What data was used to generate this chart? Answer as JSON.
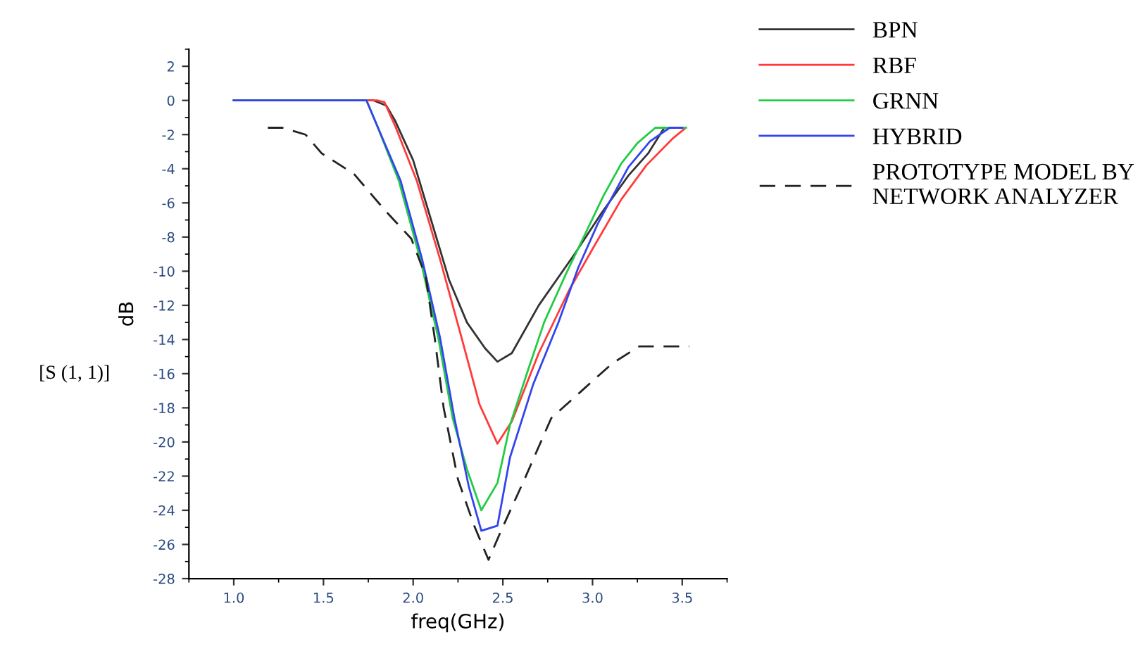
{
  "chart_data": {
    "type": "line",
    "xlabel": "freq(GHz)",
    "ylabel": "dB",
    "annotations": [
      "[S (1, 1)]"
    ],
    "xlim": [
      0.75,
      3.75
    ],
    "ylim": [
      -28,
      3
    ],
    "xticks": [
      {
        "value": 1.0,
        "label": "1.0"
      },
      {
        "value": 1.5,
        "label": "1.5"
      },
      {
        "value": 2.0,
        "label": "2.0"
      },
      {
        "value": 2.5,
        "label": "2.5"
      },
      {
        "value": 3.0,
        "label": "3.0"
      },
      {
        "value": 3.5,
        "label": "3.5"
      }
    ],
    "yticks": [
      2,
      0,
      -2,
      -4,
      -6,
      -8,
      -10,
      -12,
      -14,
      -16,
      -18,
      -20,
      -22,
      -24,
      -26,
      -28
    ],
    "grid": false,
    "legend": "right",
    "marker": "none",
    "series": [
      {
        "name": "BPN",
        "color": "#333333",
        "line_style": "solid",
        "x": [
          1.0,
          1.78,
          1.85,
          1.9,
          2.0,
          2.1,
          2.2,
          2.3,
          2.4,
          2.47,
          2.55,
          2.7,
          2.9,
          3.05,
          3.2,
          3.31,
          3.4
        ],
        "values": [
          0,
          0,
          -0.3,
          -1.2,
          -3.5,
          -7,
          -10.5,
          -13,
          -14.5,
          -15.3,
          -14.8,
          -12,
          -9,
          -6.6,
          -4.4,
          -3.1,
          -1.6
        ]
      },
      {
        "name": "RBF",
        "color": "#ff3b3b",
        "line_style": "solid",
        "x": [
          1.0,
          1.8,
          1.84,
          1.9,
          2.02,
          2.15,
          2.27,
          2.37,
          2.47,
          2.55,
          2.7,
          2.87,
          3.0,
          3.16,
          3.3,
          3.45,
          3.52
        ],
        "values": [
          0,
          0,
          -0.1,
          -1.5,
          -4.7,
          -9.3,
          -13.9,
          -17.8,
          -20.1,
          -18.8,
          -14.8,
          -11.1,
          -8.7,
          -5.8,
          -3.8,
          -2.2,
          -1.6
        ]
      },
      {
        "name": "GRNN",
        "color": "#22cc44",
        "line_style": "solid",
        "x": [
          1.0,
          1.74,
          1.8,
          1.92,
          2.04,
          2.14,
          2.22,
          2.3,
          2.38,
          2.47,
          2.54,
          2.64,
          2.73,
          2.85,
          2.96,
          3.06,
          3.16,
          3.25,
          3.35,
          3.52
        ],
        "values": [
          0,
          0,
          -1.5,
          -4.7,
          -9.3,
          -13.9,
          -18.6,
          -21.6,
          -24.0,
          -22.4,
          -19.0,
          -15.8,
          -13.0,
          -10.2,
          -7.8,
          -5.6,
          -3.7,
          -2.5,
          -1.6,
          -1.6
        ]
      },
      {
        "name": "HYBRID",
        "color": "#3344ee",
        "line_style": "solid",
        "x": [
          1.0,
          1.74,
          1.8,
          1.93,
          2.05,
          2.15,
          2.23,
          2.31,
          2.38,
          2.47,
          2.54,
          2.67,
          2.81,
          2.92,
          3.03,
          3.2,
          3.32,
          3.43,
          3.5
        ],
        "values": [
          0,
          0,
          -1.5,
          -4.7,
          -9.3,
          -13.9,
          -18.6,
          -22.6,
          -25.2,
          -24.9,
          -20.9,
          -16.6,
          -13.0,
          -9.8,
          -7.2,
          -3.9,
          -2.4,
          -1.6,
          -1.6
        ]
      },
      {
        "name": "PROTOTYPE MODEL BY\nNETWORK ANALYZER",
        "color": "#222222",
        "line_style": "dashed",
        "x": [
          1.19,
          1.27,
          1.4,
          1.49,
          1.67,
          1.84,
          1.99,
          2.07,
          2.12,
          2.17,
          2.25,
          2.34,
          2.42,
          2.49,
          2.62,
          2.77,
          2.94,
          3.11,
          3.26,
          3.54
        ],
        "values": [
          -1.6,
          -1.6,
          -2.0,
          -3.1,
          -4.3,
          -6.4,
          -8.1,
          -10.3,
          -13.9,
          -18.0,
          -22.2,
          -24.9,
          -26.9,
          -25.2,
          -22.2,
          -18.6,
          -17.0,
          -15.4,
          -14.4,
          -14.4
        ]
      }
    ]
  }
}
